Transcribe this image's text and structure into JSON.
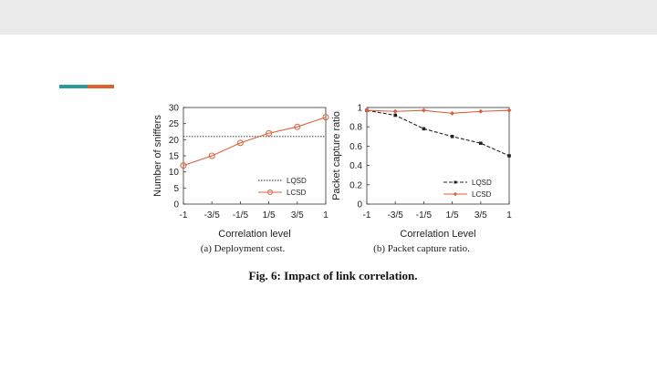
{
  "colors": {
    "accent_teal": "#2a9d9a",
    "accent_orange": "#e0622a",
    "lqsd": "#222222",
    "lcsd": "#d9623b",
    "grid": "#555555"
  },
  "caption": "Fig. 6: Impact of link correlation.",
  "chart_data": [
    {
      "type": "line",
      "subcaption": "(a) Deployment cost.",
      "xlabel": "Correlation level",
      "ylabel": "Number of sniffers",
      "categories": [
        "-1",
        "-3/5",
        "-1/5",
        "1/5",
        "3/5",
        "1"
      ],
      "ylim": [
        0,
        30
      ],
      "yticks": [
        "0",
        "5",
        "10",
        "15",
        "20",
        "25",
        "30"
      ],
      "legend_position": "lower-right",
      "series": [
        {
          "name": "LQSD",
          "style": "dotted",
          "values": [
            21,
            21,
            21,
            21,
            21,
            21
          ]
        },
        {
          "name": "LCSD",
          "style": "solid-circle",
          "values": [
            12,
            15,
            19,
            22,
            24,
            27
          ]
        }
      ]
    },
    {
      "type": "line",
      "subcaption": "(b) Packet capture ratio.",
      "xlabel": "Correlation Level",
      "ylabel": "Packet capture ratio",
      "categories": [
        "-1",
        "-3/5",
        "-1/5",
        "1/5",
        "3/5",
        "1"
      ],
      "ylim": [
        0,
        1
      ],
      "yticks": [
        "0",
        "0.2",
        "0.4",
        "0.6",
        "0.8",
        "1"
      ],
      "legend_position": "lower-right",
      "series": [
        {
          "name": "LQSD",
          "style": "dashed-square",
          "values": [
            0.97,
            0.92,
            0.78,
            0.7,
            0.63,
            0.5
          ]
        },
        {
          "name": "LCSD",
          "style": "solid-diamond",
          "values": [
            0.97,
            0.96,
            0.97,
            0.94,
            0.96,
            0.97
          ]
        }
      ]
    }
  ]
}
